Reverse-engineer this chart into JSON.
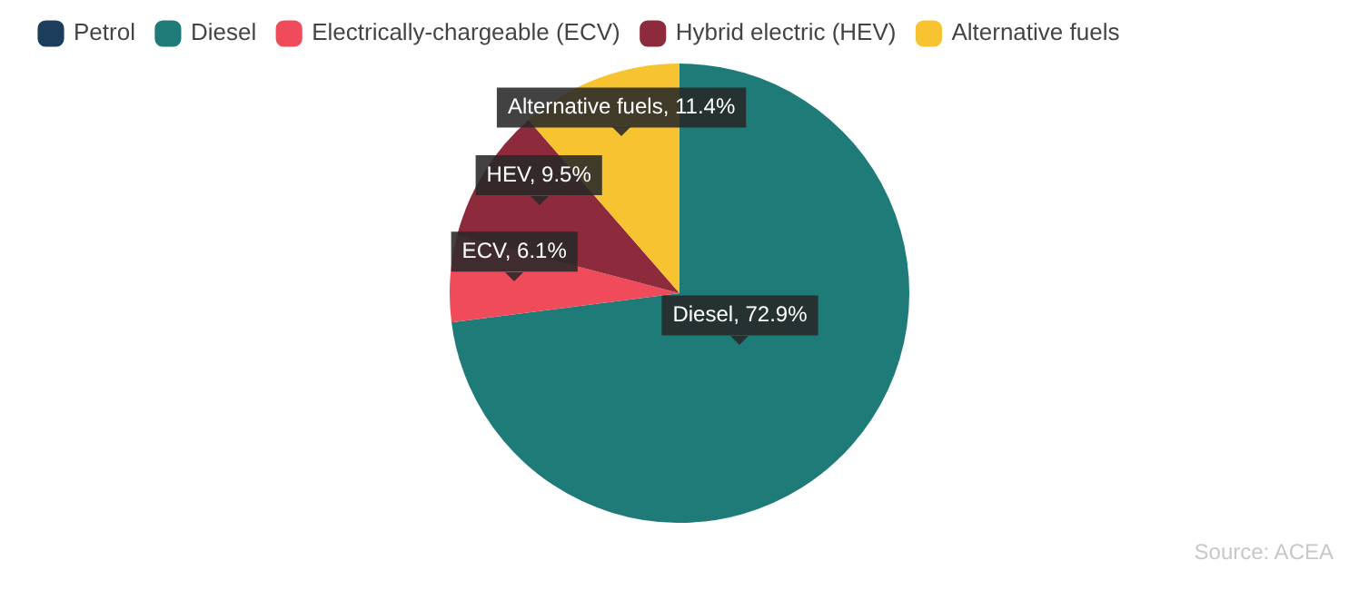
{
  "chart_data": {
    "type": "pie",
    "categories": [
      "Petrol",
      "Diesel",
      "Electrically-chargeable (ECV)",
      "Hybrid electric (HEV)",
      "Alternative fuels"
    ],
    "values": [
      0,
      72.9,
      6.1,
      9.5,
      11.4
    ],
    "colors": [
      "#1d3d5c",
      "#1e7b78",
      "#ef4b5a",
      "#8d2a3c",
      "#f7c331"
    ],
    "value_labels": [
      null,
      "Diesel, 72.9%",
      "ECV, 6.1%",
      "HEV, 9.5%",
      "Alternative fuels, 11.4%"
    ],
    "legend": "top left",
    "annotations": [
      "Source:  ACEA"
    ]
  }
}
